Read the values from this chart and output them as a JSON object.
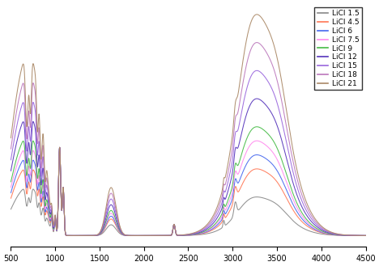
{
  "xlim": [
    500,
    4500
  ],
  "ylim": [
    -0.05,
    1.05
  ],
  "xticks": [
    500,
    1000,
    1500,
    2000,
    2500,
    3000,
    3500,
    4000,
    4500
  ],
  "legend_labels": [
    "LiCl 1.5",
    "LiCl 4.5",
    "LiCl 6",
    "LiCl 7.5",
    "LiCl 9",
    "LiCl 12",
    "LiCl 15",
    "LiCl 18",
    "LiCl 21"
  ],
  "line_colors": [
    "#888888",
    "#ff7755",
    "#4466ee",
    "#ff88ee",
    "#44bb44",
    "#5533bb",
    "#9966dd",
    "#bb77bb",
    "#aa8866"
  ],
  "mole_ratios": [
    1.5,
    4.5,
    6.0,
    7.5,
    9.0,
    12.0,
    15.0,
    18.0,
    21.0
  ],
  "background_color": "#ffffff"
}
